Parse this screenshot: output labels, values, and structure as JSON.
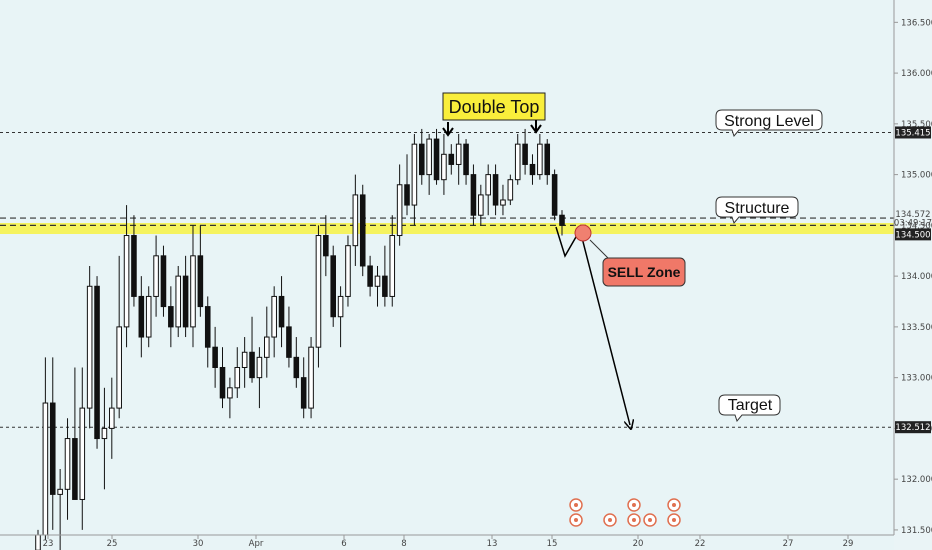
{
  "chart_data": {
    "type": "candlestick",
    "title": "",
    "xlabel": "",
    "ylabel": "",
    "ylim": [
      131.45,
      136.72
    ],
    "y_ticks": [
      "136.500",
      "136.000",
      "135.500",
      "135.000",
      "134.500",
      "134.000",
      "133.500",
      "133.000",
      "132.500",
      "132.000",
      "131.500"
    ],
    "y_tick_values": [
      136.5,
      136.0,
      135.5,
      135.0,
      134.5,
      134.0,
      133.5,
      133.0,
      132.5,
      132.0,
      131.5
    ],
    "x_ticks": [
      "23",
      "25",
      "30",
      "Apr",
      "6",
      "8",
      "13",
      "15",
      "20",
      "22",
      "27",
      "29"
    ],
    "price_badges": {
      "strong_level": "135.415",
      "structure": "134.572",
      "countdown": "03:49:17",
      "current": "134.500",
      "target": "132.512"
    },
    "levels": {
      "strong_level": 135.415,
      "structure_high": 134.572,
      "structure_low": 134.5,
      "target": 132.512
    },
    "annotations": {
      "double_top": "Double Top",
      "strong_level": "Strong Level",
      "structure": "Structure",
      "sell_zone": "SELL Zone",
      "target": "Target"
    },
    "candle_note": "OHLC candles estimated from the price axis; each candle is [open, high, low, close]",
    "candles": [
      [
        131.3,
        131.5,
        131.2,
        131.45
      ],
      [
        131.45,
        133.2,
        131.4,
        132.75
      ],
      [
        132.75,
        133.2,
        131.5,
        131.85
      ],
      [
        131.85,
        132.1,
        131.3,
        131.9
      ],
      [
        131.9,
        132.6,
        131.6,
        132.4
      ],
      [
        132.4,
        133.1,
        131.8,
        131.8
      ],
      [
        131.8,
        133.1,
        131.5,
        132.7
      ],
      [
        132.7,
        134.1,
        132.5,
        133.9
      ],
      [
        133.9,
        134.0,
        132.3,
        132.4
      ],
      [
        132.4,
        132.9,
        131.9,
        132.5
      ],
      [
        132.5,
        133.0,
        132.2,
        132.7
      ],
      [
        132.7,
        134.2,
        132.6,
        133.5
      ],
      [
        133.5,
        134.7,
        133.3,
        134.4
      ],
      [
        134.4,
        134.6,
        133.7,
        133.8
      ],
      [
        133.8,
        134.0,
        133.2,
        133.4
      ],
      [
        133.4,
        133.9,
        133.3,
        133.8
      ],
      [
        133.8,
        134.4,
        133.6,
        134.2
      ],
      [
        134.2,
        134.3,
        133.6,
        133.7
      ],
      [
        133.7,
        133.9,
        133.3,
        133.5
      ],
      [
        133.5,
        134.1,
        133.4,
        134.0
      ],
      [
        134.0,
        134.2,
        133.4,
        133.5
      ],
      [
        133.5,
        134.5,
        133.3,
        134.2
      ],
      [
        134.2,
        134.5,
        133.6,
        133.7
      ],
      [
        133.7,
        133.8,
        133.1,
        133.3
      ],
      [
        133.3,
        133.5,
        132.9,
        133.1
      ],
      [
        133.1,
        133.3,
        132.7,
        132.8
      ],
      [
        132.8,
        133.0,
        132.6,
        132.9
      ],
      [
        132.9,
        133.3,
        132.8,
        133.1
      ],
      [
        133.1,
        133.4,
        132.9,
        133.25
      ],
      [
        133.25,
        133.6,
        132.95,
        133.0
      ],
      [
        133.0,
        133.3,
        132.7,
        133.2
      ],
      [
        133.2,
        133.7,
        133.0,
        133.4
      ],
      [
        133.4,
        133.9,
        133.2,
        133.8
      ],
      [
        133.8,
        134.0,
        133.3,
        133.5
      ],
      [
        133.5,
        133.7,
        133.1,
        133.2
      ],
      [
        133.2,
        133.4,
        132.9,
        133.0
      ],
      [
        133.0,
        133.2,
        132.6,
        132.7
      ],
      [
        132.7,
        133.4,
        132.6,
        133.3
      ],
      [
        133.3,
        134.5,
        133.1,
        134.4
      ],
      [
        134.4,
        134.6,
        134.0,
        134.2
      ],
      [
        134.2,
        134.3,
        133.5,
        133.6
      ],
      [
        133.6,
        133.9,
        133.3,
        133.8
      ],
      [
        133.8,
        134.4,
        133.7,
        134.3
      ],
      [
        134.3,
        135.0,
        134.1,
        134.8
      ],
      [
        134.8,
        134.9,
        134.0,
        134.1
      ],
      [
        134.1,
        134.2,
        133.8,
        133.9
      ],
      [
        133.9,
        134.1,
        133.7,
        134.0
      ],
      [
        134.0,
        134.3,
        133.7,
        133.8
      ],
      [
        133.8,
        134.6,
        133.7,
        134.4
      ],
      [
        134.4,
        135.1,
        134.3,
        134.9
      ],
      [
        134.9,
        135.2,
        134.6,
        134.7
      ],
      [
        134.7,
        135.4,
        134.5,
        135.3
      ],
      [
        135.3,
        135.45,
        134.9,
        135.0
      ],
      [
        135.0,
        135.4,
        134.8,
        135.35
      ],
      [
        135.35,
        135.45,
        134.9,
        134.95
      ],
      [
        134.95,
        135.4,
        134.8,
        135.2
      ],
      [
        135.2,
        135.3,
        135.0,
        135.1
      ],
      [
        135.1,
        135.4,
        134.9,
        135.3
      ],
      [
        135.3,
        135.35,
        134.9,
        135.0
      ],
      [
        135.0,
        135.1,
        134.5,
        134.6
      ],
      [
        134.6,
        134.9,
        134.5,
        134.8
      ],
      [
        134.8,
        135.1,
        134.6,
        135.0
      ],
      [
        135.0,
        135.1,
        134.6,
        134.7
      ],
      [
        134.7,
        134.9,
        134.6,
        134.75
      ],
      [
        134.75,
        135.0,
        134.7,
        134.95
      ],
      [
        134.95,
        135.4,
        134.9,
        135.3
      ],
      [
        135.3,
        135.45,
        135.0,
        135.1
      ],
      [
        135.1,
        135.2,
        134.9,
        135.0
      ],
      [
        135.0,
        135.4,
        134.95,
        135.3
      ],
      [
        135.3,
        135.35,
        134.9,
        135.0
      ],
      [
        135.0,
        135.05,
        134.55,
        134.6
      ],
      [
        134.6,
        134.65,
        134.4,
        134.5
      ]
    ]
  }
}
